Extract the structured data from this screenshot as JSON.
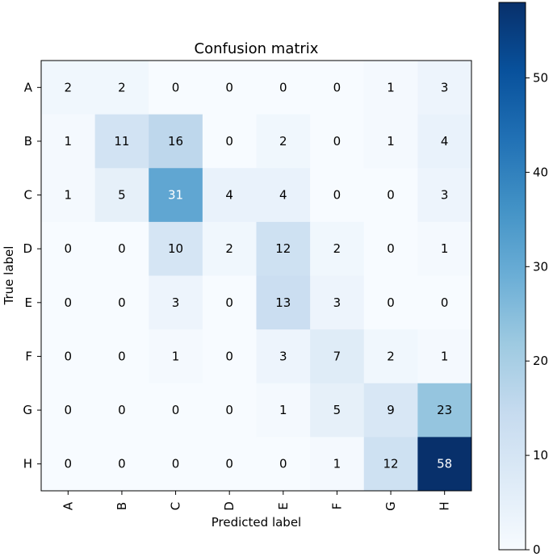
{
  "chart_data": {
    "type": "heatmap",
    "title": "Confusion matrix",
    "xlabel": "Predicted label",
    "ylabel": "True label",
    "x_categories": [
      "A",
      "B",
      "C",
      "D",
      "E",
      "F",
      "G",
      "H"
    ],
    "y_categories": [
      "A",
      "B",
      "C",
      "D",
      "E",
      "F",
      "G",
      "H"
    ],
    "values": [
      [
        2,
        2,
        0,
        0,
        0,
        0,
        1,
        3
      ],
      [
        1,
        11,
        16,
        0,
        2,
        0,
        1,
        4
      ],
      [
        1,
        5,
        31,
        4,
        4,
        0,
        0,
        3
      ],
      [
        0,
        0,
        10,
        2,
        12,
        2,
        0,
        1
      ],
      [
        0,
        0,
        3,
        0,
        13,
        3,
        0,
        0
      ],
      [
        0,
        0,
        1,
        0,
        3,
        7,
        2,
        1
      ],
      [
        0,
        0,
        0,
        0,
        1,
        5,
        9,
        23
      ],
      [
        0,
        0,
        0,
        0,
        0,
        1,
        12,
        58
      ]
    ],
    "colormap": "Blues",
    "colorbar": {
      "min": 0,
      "max": 58,
      "ticks": [
        "0",
        "10",
        "20",
        "30",
        "40",
        "50"
      ]
    },
    "text_color_threshold": 29,
    "colors": {
      "low": "#f7fbff",
      "high": "#08306b",
      "text_dark": "#000000",
      "text_light": "#ffffff"
    },
    "grid": false
  }
}
